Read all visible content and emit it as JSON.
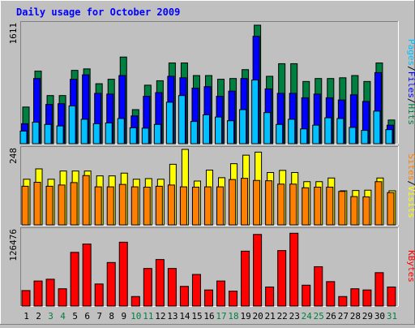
{
  "chart_data": {
    "type": "bar",
    "title": "Daily usage for October 2009",
    "colors": {
      "hits": "#008040",
      "files": "#0000ff",
      "pages": "#00c0ff",
      "visits": "#ffff00",
      "sites": "#ff8000",
      "kbytes": "#ff0000",
      "weekend_label": "#008040",
      "title": "#0000ff",
      "background": "#c0c0c0",
      "plot_background": "#c0c0c0"
    },
    "categories": [
      "1",
      "2",
      "3",
      "4",
      "5",
      "6",
      "7",
      "8",
      "9",
      "10",
      "11",
      "12",
      "13",
      "14",
      "15",
      "16",
      "17",
      "18",
      "19",
      "20",
      "21",
      "22",
      "23",
      "24",
      "25",
      "26",
      "27",
      "28",
      "29",
      "30",
      "31"
    ],
    "weekend_days": [
      "3",
      "4",
      "10",
      "11",
      "17",
      "18",
      "24",
      "25",
      "31"
    ],
    "panels": [
      {
        "id": "usage",
        "max_label": "1611",
        "ylim": [
          0,
          1611
        ],
        "legend": [
          {
            "text": "Pages",
            "color": "#00c0ff"
          },
          {
            "text": "/",
            "color": "#000000"
          },
          {
            "text": "Files",
            "color": "#0000ff"
          },
          {
            "text": "/",
            "color": "#000000"
          },
          {
            "text": "Hits",
            "color": "#008040"
          }
        ],
        "series": [
          {
            "name": "Hits",
            "color": "#008040",
            "values": [
              495,
              980,
              650,
              650,
              990,
              1010,
              810,
              870,
              1170,
              460,
              790,
              850,
              1090,
              1090,
              920,
              920,
              870,
              880,
              1000,
              1600,
              910,
              1080,
              1080,
              840,
              880,
              880,
              890,
              920,
              840,
              1090,
              320
            ]
          },
          {
            "name": "Files",
            "color": "#0000ff",
            "values": [
              270,
              880,
              530,
              540,
              870,
              930,
              680,
              670,
              920,
              375,
              640,
              690,
              910,
              890,
              750,
              770,
              640,
              710,
              880,
              1450,
              740,
              680,
              680,
              620,
              670,
              620,
              590,
              660,
              570,
              960,
              250
            ]
          },
          {
            "name": "Pages",
            "color": "#00c0ff",
            "values": [
              170,
              290,
              260,
              240,
              510,
              330,
              270,
              280,
              340,
              215,
              210,
              260,
              560,
              650,
              300,
              390,
              360,
              310,
              460,
              860,
              420,
              260,
              330,
              200,
              250,
              350,
              340,
              220,
              180,
              440,
              190
            ]
          }
        ]
      },
      {
        "id": "visits",
        "max_label": "248",
        "ylim": [
          0,
          248
        ],
        "legend": [
          {
            "text": "Sites",
            "color": "#ff8000"
          },
          {
            "text": "/",
            "color": "#000000"
          },
          {
            "text": "Visits",
            "color": "#ffff00"
          }
        ],
        "series": [
          {
            "name": "Visits",
            "color": "#ffff00",
            "values": [
              150,
              184,
              150,
              177,
              177,
              177,
              161,
              161,
              170,
              150,
              152,
              150,
              199,
              248,
              144,
              180,
              155,
              201,
              229,
              239,
              172,
              179,
              172,
              142,
              142,
              154,
              112,
              113,
              114,
              154,
              112
            ]
          },
          {
            "name": "Sites",
            "color": "#ff8000",
            "values": [
              127,
              140,
              127,
              131,
              139,
              162,
              125,
              125,
              133,
              125,
              124,
              127,
              131,
              125,
              124,
              125,
              125,
              149,
              153,
              146,
              145,
              134,
              134,
              122,
              124,
              124,
              110,
              93,
              92,
              142,
              106
            ]
          }
        ]
      },
      {
        "id": "kbytes",
        "max_label": "126476",
        "ylim": [
          0,
          126476
        ],
        "legend": [
          {
            "text": "KBytes",
            "color": "#ff0000"
          }
        ],
        "series": [
          {
            "name": "KBytes",
            "color": "#ff0000",
            "values": [
              26000,
              42000,
              45000,
              29000,
              90000,
              104000,
              37000,
              73000,
              107000,
              16000,
              63000,
              78000,
              63000,
              33000,
              53000,
              27000,
              42000,
              25000,
              92000,
              120000,
              32000,
              93000,
              122000,
              35000,
              66000,
              41000,
              16000,
              29000,
              27000,
              56000,
              32000
            ]
          }
        ]
      }
    ]
  }
}
